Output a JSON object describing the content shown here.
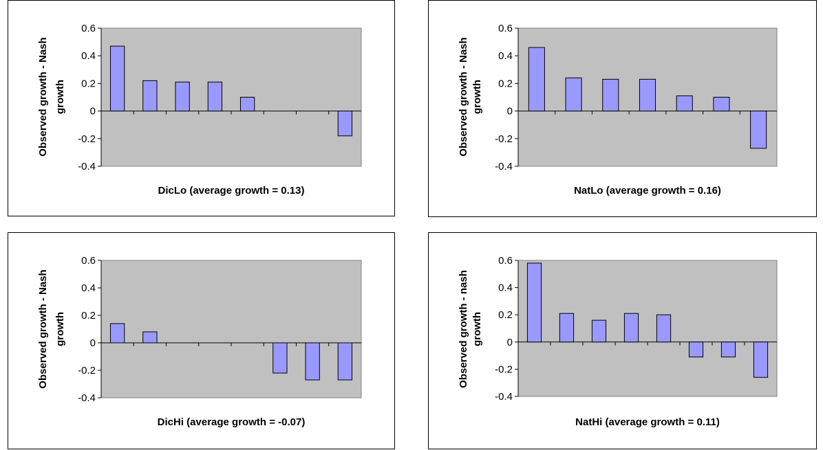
{
  "chart_data": [
    {
      "type": "bar",
      "xlabel": "DicLo (average growth = 0.13)",
      "ylabel": [
        "Observed growth - Nash",
        "growth"
      ],
      "ylim": [
        -0.4,
        0.6
      ],
      "yticks": [
        "0.6",
        "0.4",
        "0.2",
        "0",
        "-0.2",
        "-0.4"
      ],
      "ytick_values": [
        0.6,
        0.4,
        0.2,
        0,
        -0.2,
        -0.4
      ],
      "values": [
        0.47,
        0.22,
        0.21,
        0.21,
        0.1,
        0,
        0,
        -0.18
      ],
      "grid": false,
      "colors": {
        "plot_bg": "#c0c0c0",
        "bar": "#9999ff",
        "bar_stroke": "#000000"
      }
    },
    {
      "type": "bar",
      "xlabel": "NatLo (average growth = 0.16)",
      "ylabel": [
        "Observed growth - Nash",
        "growth"
      ],
      "ylim": [
        -0.4,
        0.6
      ],
      "yticks": [
        "0.6",
        "0.4",
        "0.2",
        "0",
        "-0.2",
        "-0.4"
      ],
      "ytick_values": [
        0.6,
        0.4,
        0.2,
        0,
        -0.2,
        -0.4
      ],
      "values": [
        0.46,
        0.24,
        0.23,
        0.23,
        0.11,
        0.1,
        -0.27
      ],
      "grid": false,
      "colors": {
        "plot_bg": "#c0c0c0",
        "bar": "#9999ff",
        "bar_stroke": "#000000"
      }
    },
    {
      "type": "bar",
      "xlabel": "DicHi (average growth = -0.07)",
      "ylabel": [
        "Observed growth - Nash",
        "growth"
      ],
      "ylim": [
        -0.4,
        0.6
      ],
      "yticks": [
        "0.6",
        "0.4",
        "0.2",
        "0",
        "-0.2",
        "-0.4"
      ],
      "ytick_values": [
        0.6,
        0.4,
        0.2,
        0,
        -0.2,
        -0.4
      ],
      "values": [
        0.14,
        0.08,
        0,
        0,
        0,
        -0.22,
        -0.27,
        -0.27
      ],
      "grid": false,
      "colors": {
        "plot_bg": "#c0c0c0",
        "bar": "#9999ff",
        "bar_stroke": "#000000"
      }
    },
    {
      "type": "bar",
      "xlabel": "NatHi (average growth = 0.11)",
      "ylabel": [
        "Observed growth - nash",
        "growth"
      ],
      "ylim": [
        -0.4,
        0.6
      ],
      "yticks": [
        "0.6",
        "0.4",
        "0.2",
        "0",
        "-0.2",
        "-0.4"
      ],
      "ytick_values": [
        0.6,
        0.4,
        0.2,
        0,
        -0.2,
        -0.4
      ],
      "values": [
        0.58,
        0.21,
        0.16,
        0.21,
        0.2,
        -0.11,
        -0.11,
        -0.26
      ],
      "grid": false,
      "colors": {
        "plot_bg": "#c0c0c0",
        "bar": "#9999ff",
        "bar_stroke": "#000000"
      }
    }
  ]
}
